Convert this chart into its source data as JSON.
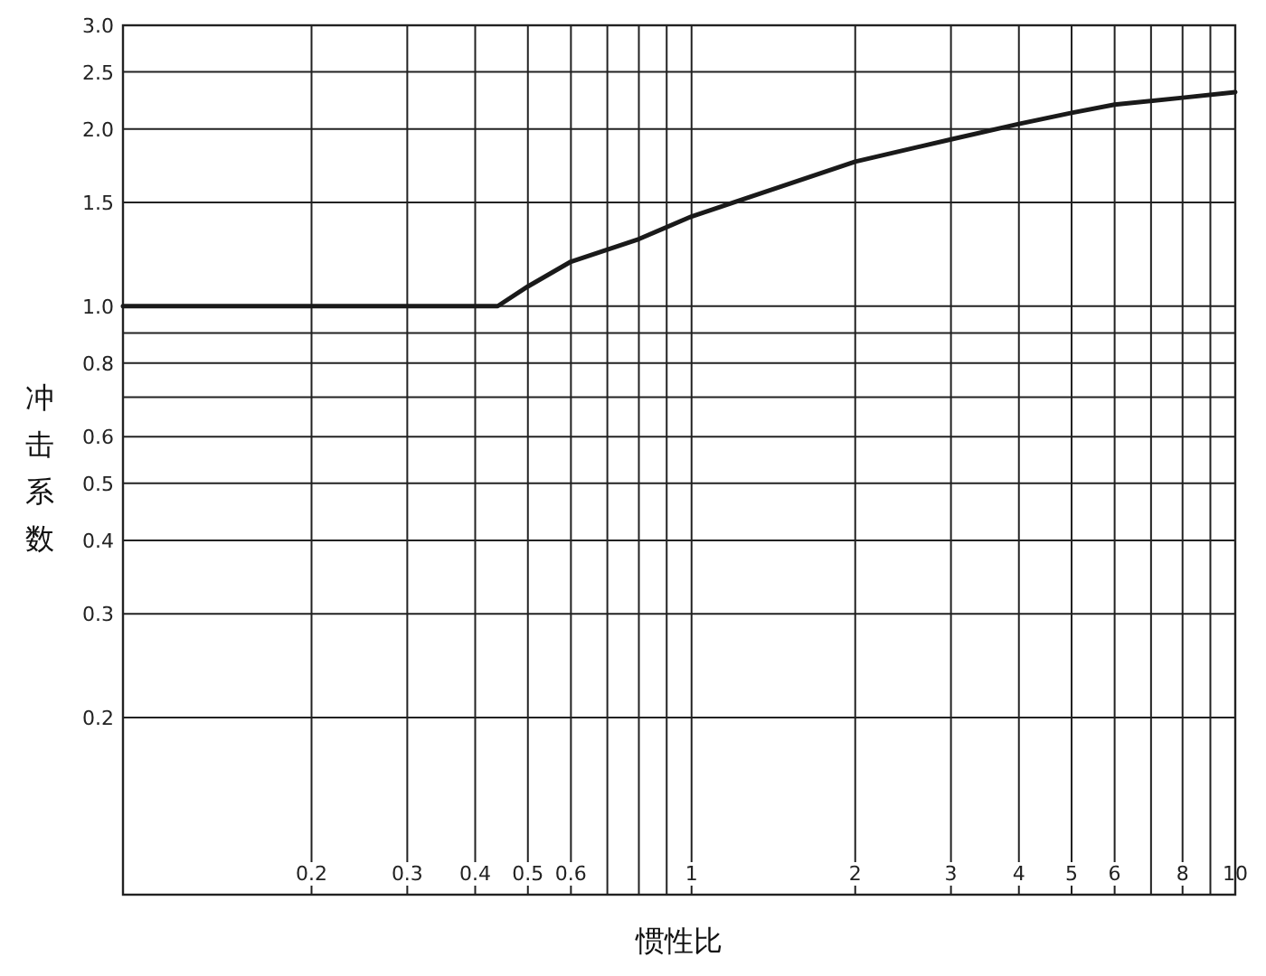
{
  "chart_data": {
    "type": "line",
    "xlabel": "惯性比",
    "ylabel": "冲击系数",
    "log": "xy",
    "grid": true,
    "xlim": [
      0.09,
      10
    ],
    "ylim": [
      0.1,
      3
    ],
    "xticks": [
      0.2,
      0.3,
      0.4,
      0.5,
      0.6,
      {
        "value": 0.7,
        "label": null
      },
      {
        "value": 0.8,
        "label": null
      },
      {
        "value": 0.9,
        "label": null
      },
      1,
      2,
      3,
      4,
      5,
      6,
      {
        "value": 7,
        "label": null
      },
      8,
      {
        "value": 9,
        "label": null
      },
      10
    ],
    "yticks": [
      0.2,
      0.3,
      0.4,
      0.5,
      0.6,
      {
        "value": 0.7,
        "label": null
      },
      0.8,
      {
        "value": 0.9,
        "label": null
      },
      {
        "value": 1,
        "label": "1.0"
      },
      1.5,
      {
        "value": 2,
        "label": "2.0"
      },
      {
        "value": 2.5,
        "label": "2.5"
      },
      {
        "value": 3,
        "label": "3.0"
      }
    ],
    "series": [
      {
        "color": "#1a1a1a",
        "x": [
          0.09,
          0.44,
          0.5,
          0.6,
          0.8,
          1,
          2,
          3,
          4,
          5,
          6,
          8,
          10
        ],
        "values": [
          1,
          1,
          1.08,
          1.19,
          1.3,
          1.42,
          1.76,
          1.92,
          2.04,
          2.13,
          2.2,
          2.26,
          2.31
        ]
      }
    ]
  }
}
